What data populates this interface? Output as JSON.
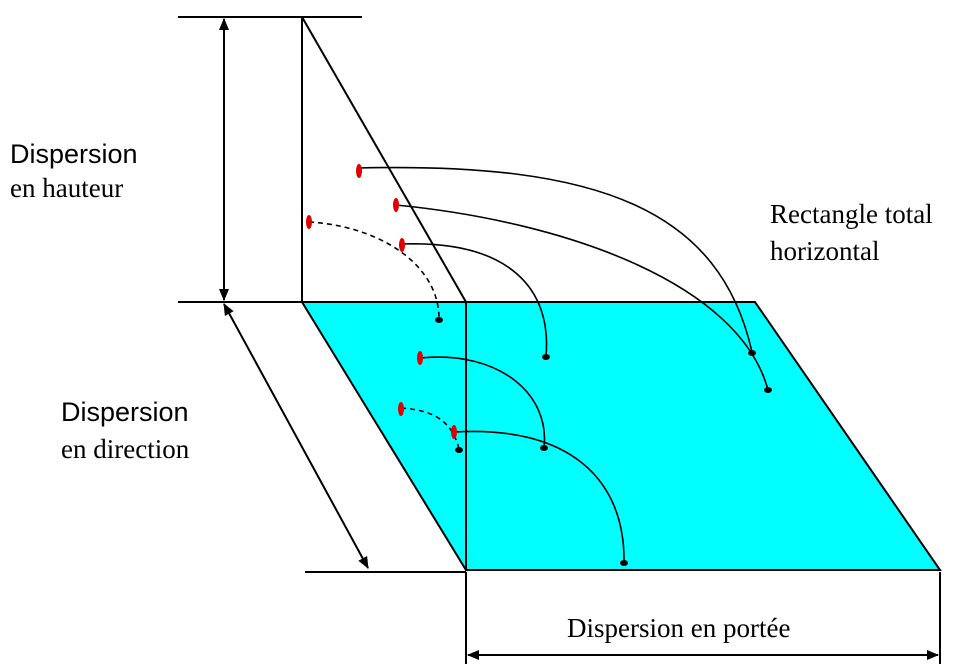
{
  "labels": {
    "height_line1": "Dispersion",
    "height_line2": "en hauteur",
    "direction_line1": "Dispersion",
    "direction_line2": "en direction",
    "rect_line1": "Rectangle total",
    "rect_line2": "horizontal",
    "range": "Dispersion en portée"
  },
  "colors": {
    "ground_plane": "#00ffff",
    "launch_point": "#e00000",
    "impact_point": "#000000"
  }
}
